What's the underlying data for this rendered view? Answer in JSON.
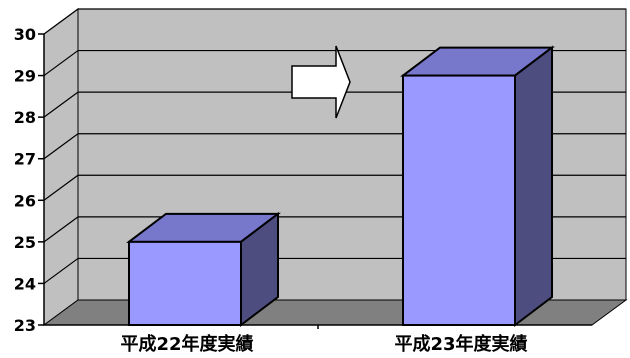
{
  "chart_data": {
    "type": "bar",
    "style": "3d-column",
    "categories": [
      "平成22年度実績",
      "平成23年度実績"
    ],
    "values": [
      25,
      29
    ],
    "ylim": [
      23,
      30
    ],
    "yticks": [
      "23",
      "24",
      "25",
      "26",
      "27",
      "28",
      "29",
      "30"
    ],
    "grid": true,
    "legend": "none",
    "annotation": "right-arrow-icon between bars",
    "colors": {
      "bar_front": "#9999ff",
      "bar_top": "#7777cc",
      "bar_side": "#4d4d80",
      "wall": "#c0c0c0",
      "floor": "#808080"
    }
  }
}
